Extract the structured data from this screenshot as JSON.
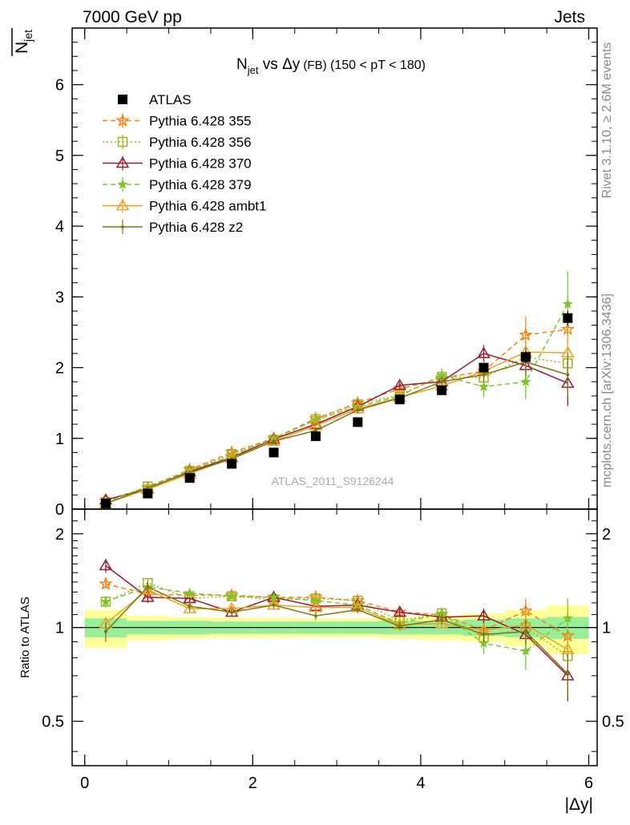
{
  "header": {
    "left": "7000 GeV pp",
    "right": "Jets"
  },
  "side_labels": {
    "rivet": "Rivet 3.1.10, ≥ 2.6M events",
    "mcplots": "mcplots.cern.ch [arXiv:1306.3436]"
  },
  "chart_data": [
    {
      "type": "line",
      "title": {
        "main": "N",
        "sub": "jet",
        "rest": " vs Δy",
        "small": " (FB)",
        "tail": " (150 < pT < 180)"
      },
      "ylabel": {
        "main": "N",
        "sub": "jet"
      },
      "xlim": [
        -0.15,
        6.1
      ],
      "ylim": [
        0,
        6.8
      ],
      "yticks": [
        {
          "v": 0,
          "label": "0"
        },
        {
          "v": 1,
          "label": "1"
        },
        {
          "v": 2,
          "label": "2"
        },
        {
          "v": 3,
          "label": "3"
        },
        {
          "v": 4,
          "label": "4"
        },
        {
          "v": 5,
          "label": "5"
        },
        {
          "v": 6,
          "label": "6"
        }
      ],
      "watermark": "ATLAS_2011_S9126244",
      "x": [
        0.25,
        0.75,
        1.25,
        1.75,
        2.25,
        2.75,
        3.25,
        3.75,
        4.25,
        4.75,
        5.25,
        5.75
      ],
      "data": {
        "name": "ATLAS",
        "values": [
          0.08,
          0.22,
          0.44,
          0.64,
          0.8,
          1.03,
          1.23,
          1.55,
          1.68,
          2.0,
          2.15,
          2.7
        ],
        "errors": [
          0.01,
          0.01,
          0.02,
          0.02,
          0.03,
          0.03,
          0.03,
          0.04,
          0.05,
          0.06,
          0.08,
          0.1
        ]
      },
      "series": [
        {
          "name": "Pythia 6.428 355",
          "color": "#ff7f0e",
          "marker": "star-open",
          "dash": "dashed",
          "values": [
            0.11,
            0.3,
            0.56,
            0.8,
            1.0,
            1.28,
            1.5,
            1.7,
            1.85,
            1.95,
            2.46,
            2.54
          ],
          "errors": [
            0.01,
            0.02,
            0.03,
            0.03,
            0.03,
            0.04,
            0.05,
            0.05,
            0.08,
            0.1,
            0.26,
            0.22
          ]
        },
        {
          "name": "Pythia 6.428 356",
          "color": "#9ab51f",
          "marker": "square-open",
          "dash": "dotted",
          "values": [
            0.1,
            0.32,
            0.54,
            0.78,
            0.98,
            1.27,
            1.48,
            1.62,
            1.87,
            1.86,
            2.15,
            2.06
          ],
          "errors": [
            0.01,
            0.02,
            0.03,
            0.03,
            0.03,
            0.04,
            0.05,
            0.05,
            0.07,
            0.1,
            0.2,
            0.18
          ]
        },
        {
          "name": "Pythia 6.428 370",
          "color": "#9b1b30",
          "marker": "triangle-open",
          "dash": "solid",
          "values": [
            0.13,
            0.29,
            0.53,
            0.73,
            0.99,
            1.2,
            1.45,
            1.75,
            1.8,
            2.2,
            2.03,
            1.78
          ],
          "errors": [
            0.01,
            0.02,
            0.03,
            0.03,
            0.03,
            0.04,
            0.05,
            0.05,
            0.07,
            0.12,
            0.22,
            0.32
          ]
        },
        {
          "name": "Pythia 6.428 379",
          "color": "#7cc62a",
          "marker": "star-filled",
          "dash": "dashed",
          "values": [
            0.1,
            0.32,
            0.55,
            0.75,
            1.0,
            1.26,
            1.45,
            1.6,
            1.89,
            1.73,
            1.8,
            2.9
          ],
          "errors": [
            0.01,
            0.02,
            0.03,
            0.03,
            0.03,
            0.04,
            0.05,
            0.05,
            0.1,
            0.15,
            0.25,
            0.46
          ]
        },
        {
          "name": "Pythia 6.428 ambt1",
          "color": "#f0a020",
          "marker": "triangle-open",
          "dash": "solid",
          "values": [
            0.08,
            0.28,
            0.5,
            0.72,
            0.96,
            1.18,
            1.42,
            1.58,
            1.74,
            1.95,
            2.22,
            2.21
          ],
          "errors": [
            0.01,
            0.02,
            0.03,
            0.03,
            0.03,
            0.04,
            0.05,
            0.05,
            0.07,
            0.1,
            0.2,
            0.25
          ]
        },
        {
          "name": "Pythia 6.428 z2",
          "color": "#7a7a14",
          "marker": "dot",
          "dash": "solid",
          "values": [
            0.08,
            0.3,
            0.52,
            0.71,
            0.96,
            1.11,
            1.4,
            1.57,
            1.8,
            1.9,
            2.08,
            1.9
          ],
          "errors": [
            0.01,
            0.02,
            0.03,
            0.03,
            0.03,
            0.04,
            0.05,
            0.05,
            0.07,
            0.1,
            0.2,
            0.3
          ]
        }
      ]
    },
    {
      "type": "line",
      "ylabel": "Ratio to ATLAS",
      "ylog": true,
      "ylim": [
        0.36,
        2.4
      ],
      "yticks": [
        {
          "v": 0.5,
          "label": "0.5"
        },
        {
          "v": 1,
          "label": "1"
        },
        {
          "v": 2,
          "label": "2"
        }
      ],
      "xlim": [
        -0.15,
        6.1
      ],
      "xticks": [
        {
          "v": 0,
          "label": "0"
        },
        {
          "v": 2,
          "label": "2"
        },
        {
          "v": 4,
          "label": "4"
        },
        {
          "v": 6,
          "label": "6"
        }
      ],
      "xlabel": "|Δy|",
      "bins": [
        {
          "lo": 0.0,
          "hi": 0.5,
          "inner": [
            0.93,
            1.07
          ],
          "outer": [
            0.86,
            1.14
          ]
        },
        {
          "lo": 0.5,
          "hi": 1.0,
          "inner": [
            0.95,
            1.05
          ],
          "outer": [
            0.91,
            1.09
          ]
        },
        {
          "lo": 1.0,
          "hi": 1.5,
          "inner": [
            0.95,
            1.05
          ],
          "outer": [
            0.92,
            1.08
          ]
        },
        {
          "lo": 1.5,
          "hi": 2.0,
          "inner": [
            0.955,
            1.045
          ],
          "outer": [
            0.925,
            1.075
          ]
        },
        {
          "lo": 2.0,
          "hi": 2.5,
          "inner": [
            0.955,
            1.045
          ],
          "outer": [
            0.925,
            1.075
          ]
        },
        {
          "lo": 2.5,
          "hi": 3.0,
          "inner": [
            0.955,
            1.045
          ],
          "outer": [
            0.93,
            1.07
          ]
        },
        {
          "lo": 3.0,
          "hi": 3.5,
          "inner": [
            0.955,
            1.045
          ],
          "outer": [
            0.93,
            1.07
          ]
        },
        {
          "lo": 3.5,
          "hi": 4.0,
          "inner": [
            0.95,
            1.05
          ],
          "outer": [
            0.92,
            1.08
          ]
        },
        {
          "lo": 4.0,
          "hi": 4.5,
          "inner": [
            0.95,
            1.05
          ],
          "outer": [
            0.91,
            1.09
          ]
        },
        {
          "lo": 4.5,
          "hi": 5.0,
          "inner": [
            0.94,
            1.06
          ],
          "outer": [
            0.9,
            1.11
          ]
        },
        {
          "lo": 5.0,
          "hi": 5.5,
          "inner": [
            0.93,
            1.07
          ],
          "outer": [
            0.87,
            1.14
          ]
        },
        {
          "lo": 5.5,
          "hi": 6.0,
          "inner": [
            0.92,
            1.08
          ],
          "outer": [
            0.82,
            1.18
          ]
        }
      ],
      "x": [
        0.25,
        0.75,
        1.25,
        1.75,
        2.25,
        2.75,
        3.25,
        3.75,
        4.25,
        4.75,
        5.25,
        5.75
      ],
      "series": [
        {
          "name": "Pythia 6.428 355",
          "values": [
            1.38,
            1.28,
            1.27,
            1.27,
            1.25,
            1.25,
            1.22,
            1.12,
            1.1,
            0.98,
            1.13,
            0.94
          ],
          "errors": [
            0.05,
            0.04,
            0.04,
            0.03,
            0.03,
            0.03,
            0.03,
            0.03,
            0.04,
            0.05,
            0.11,
            0.08
          ]
        },
        {
          "name": "Pythia 6.428 356",
          "values": [
            1.21,
            1.39,
            1.24,
            1.26,
            1.23,
            1.24,
            1.22,
            1.05,
            1.11,
            0.93,
            1.0,
            0.81
          ],
          "errors": [
            0.05,
            0.05,
            0.04,
            0.03,
            0.03,
            0.03,
            0.03,
            0.03,
            0.04,
            0.05,
            0.09,
            0.07
          ]
        },
        {
          "name": "Pythia 6.428 370",
          "values": [
            1.58,
            1.25,
            1.24,
            1.12,
            1.25,
            1.17,
            1.18,
            1.12,
            1.08,
            1.09,
            0.95,
            0.7
          ],
          "errors": [
            0.08,
            0.05,
            0.04,
            0.03,
            0.03,
            0.03,
            0.03,
            0.03,
            0.04,
            0.06,
            0.1,
            0.12
          ]
        },
        {
          "name": "Pythia 6.428 379",
          "values": [
            1.21,
            1.35,
            1.29,
            1.26,
            1.25,
            1.22,
            1.18,
            1.03,
            1.11,
            0.89,
            0.84,
            1.07
          ],
          "errors": [
            0.05,
            0.05,
            0.04,
            0.03,
            0.03,
            0.03,
            0.03,
            0.03,
            0.05,
            0.07,
            0.11,
            0.17
          ]
        },
        {
          "name": "Pythia 6.428 ambt1",
          "values": [
            1.03,
            1.32,
            1.15,
            1.15,
            1.18,
            1.16,
            1.16,
            1.02,
            1.03,
            0.98,
            1.02,
            0.85
          ],
          "errors": [
            0.05,
            0.04,
            0.04,
            0.03,
            0.03,
            0.03,
            0.03,
            0.03,
            0.04,
            0.05,
            0.09,
            0.09
          ]
        },
        {
          "name": "Pythia 6.428 z2",
          "values": [
            0.97,
            1.35,
            1.17,
            1.12,
            1.18,
            1.09,
            1.14,
            1.01,
            1.06,
            0.95,
            0.97,
            0.71
          ],
          "errors": [
            0.07,
            0.05,
            0.04,
            0.03,
            0.03,
            0.03,
            0.03,
            0.03,
            0.04,
            0.05,
            0.09,
            0.11
          ]
        }
      ]
    }
  ]
}
